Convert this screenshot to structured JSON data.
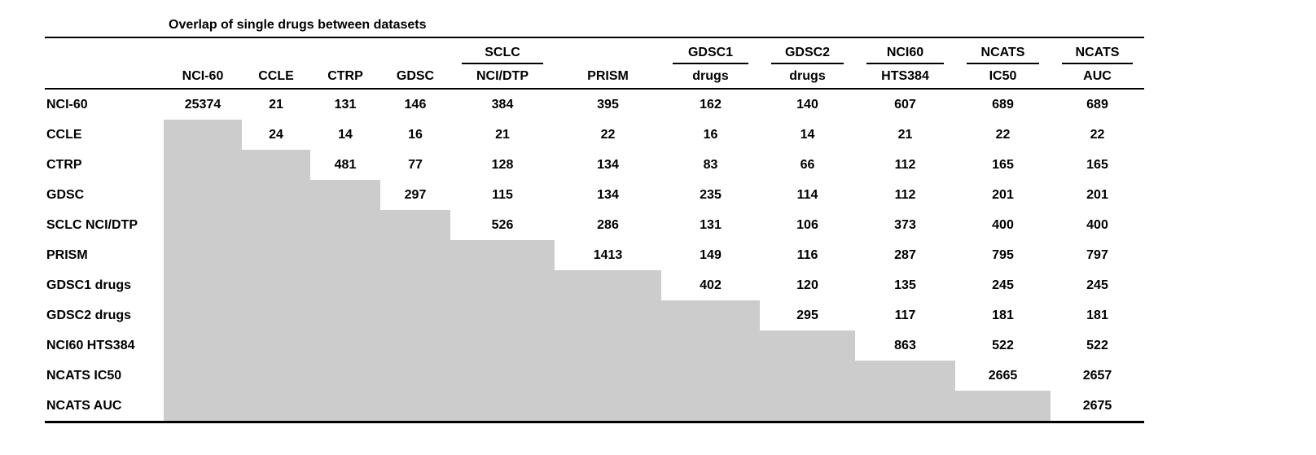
{
  "chart_data": {
    "type": "table",
    "title": "Overlap of single drugs between datasets",
    "column_group_headers": [
      "",
      "",
      "",
      "",
      "SCLC",
      "",
      "GDSC1",
      "GDSC2",
      "NCI60",
      "NCATS",
      "NCATS"
    ],
    "column_headers": [
      "NCI-60",
      "CCLE",
      "CTRP",
      "GDSC",
      "NCI/DTP",
      "PRISM",
      "drugs",
      "drugs",
      "HTS384",
      "IC50",
      "AUC"
    ],
    "row_headers": [
      "NCI-60",
      "CCLE",
      "CTRP",
      "GDSC",
      "SCLC NCI/DTP",
      "PRISM",
      "GDSC1 drugs",
      "GDSC2 drugs",
      "NCI60 HTS384",
      "NCATS IC50",
      "NCATS AUC"
    ],
    "values": [
      [
        25374,
        21,
        131,
        146,
        384,
        395,
        162,
        140,
        607,
        689,
        689
      ],
      [
        null,
        24,
        14,
        16,
        21,
        22,
        16,
        14,
        21,
        22,
        22
      ],
      [
        null,
        null,
        481,
        77,
        128,
        134,
        83,
        66,
        112,
        165,
        165
      ],
      [
        null,
        null,
        null,
        297,
        115,
        134,
        235,
        114,
        112,
        201,
        201
      ],
      [
        null,
        null,
        null,
        null,
        526,
        286,
        131,
        106,
        373,
        400,
        400
      ],
      [
        null,
        null,
        null,
        null,
        null,
        1413,
        149,
        116,
        287,
        795,
        797
      ],
      [
        null,
        null,
        null,
        null,
        null,
        null,
        402,
        120,
        135,
        245,
        245
      ],
      [
        null,
        null,
        null,
        null,
        null,
        null,
        null,
        295,
        117,
        181,
        181
      ],
      [
        null,
        null,
        null,
        null,
        null,
        null,
        null,
        null,
        863,
        522,
        522
      ],
      [
        null,
        null,
        null,
        null,
        null,
        null,
        null,
        null,
        null,
        2665,
        2657
      ],
      [
        null,
        null,
        null,
        null,
        null,
        null,
        null,
        null,
        null,
        null,
        2675
      ]
    ],
    "lower_triangle_fill": "#cccccc"
  }
}
